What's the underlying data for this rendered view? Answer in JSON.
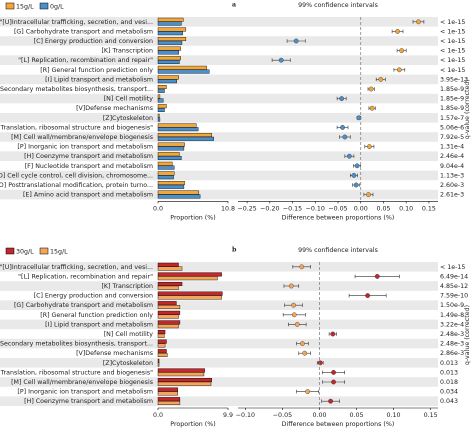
{
  "chart_data": [
    {
      "type": "errorbar",
      "label": "a",
      "ci_title": "99% confidence intervals",
      "categories": [
        "\"[U]Intracellular trafficking, secretion, and vesi...",
        "[G] Carbohydrate transport and metabolism",
        "[C] Energy production and conversion",
        "[K] Transcription",
        "\"[L] Replication, recombination and repair\"",
        "[R] General function prediction only",
        "[I] Lipid transport and metabolism",
        "\"[Q] Secondary metabolites biosynthesis, transport...",
        "[N] Cell motility",
        "[V]Defense mechanisms",
        "[Z]Cytoskeleton",
        "\"[J] Translation, ribosomal structure and biogenesis\"",
        "[M] Cell wall/membrane/envelope biogenesis",
        "[P] Inorganic ion transport and metabolism",
        "[H] Coenzyme transport and metabolism",
        "[F] Nucleotide transport and metabolism",
        "\"[D] Cell cycle control, cell division, chromosome...",
        "\"[O] Posttranslational modification, protein turno...",
        "[E] Amino acid transport and metabolism"
      ],
      "series": [
        {
          "name": "15g/L",
          "color": "#f3a73a",
          "values": [
            3.9,
            4.3,
            4.3,
            3.5,
            3.5,
            7.5,
            3.2,
            1.3,
            0.3,
            1.3,
            0.2,
            5.9,
            8.3,
            4.1,
            3.3,
            2.2,
            2.5,
            4.1,
            6.3
          ]
        },
        {
          "name": "0g/L",
          "color": "#4a8fcb",
          "values": [
            3.6,
            3.8,
            3.7,
            3.2,
            3.3,
            7.9,
            2.9,
            1.0,
            0.8,
            1.0,
            0.3,
            6.2,
            8.6,
            4.0,
            3.6,
            2.5,
            2.4,
            4.0,
            6.5
          ]
        }
      ],
      "xlabel": "Proportion (%)",
      "xlim": [
        0,
        10.8
      ],
      "xticks": [
        {
          "value": 0,
          "label": "0.0"
        },
        10.8
      ],
      "difference": {
        "values": [
          0.127,
          0.081,
          -0.142,
          0.09,
          -0.175,
          0.085,
          0.044,
          0.023,
          -0.042,
          0.025,
          -0.004,
          -0.04,
          -0.035,
          0.019,
          -0.025,
          -0.008,
          -0.015,
          -0.01,
          0.017
        ],
        "errors": [
          0.012,
          0.012,
          0.02,
          0.01,
          0.02,
          0.012,
          0.01,
          0.007,
          0.01,
          0.007,
          0.004,
          0.012,
          0.012,
          0.01,
          0.01,
          0.008,
          0.008,
          0.008,
          0.01
        ],
        "xlabel": "Difference between proportions (%)",
        "xlim": [
          -0.27,
          0.17
        ],
        "xticks": [
          {
            "value": -0.25,
            "label": "−0.25"
          },
          {
            "value": -0.2,
            "label": "−0.20"
          },
          {
            "value": -0.15,
            "label": "−0.15"
          },
          {
            "value": -0.1,
            "label": "−0.10"
          },
          {
            "value": -0.05,
            "label": "−0.05"
          },
          {
            "value": 0,
            "label": "0.00"
          },
          {
            "value": 0.05,
            "label": "0.05"
          },
          {
            "value": 0.1,
            "label": "0.10"
          },
          {
            "value": 0.15,
            "label": "0.15"
          }
        ]
      },
      "q_values": [
        "< 1e-15",
        "< 1e-15",
        "< 1e-15",
        "< 1e-15",
        "< 1e-15",
        "< 1e-15",
        "3.95e-13",
        "1.85e-9",
        "1.85e-9",
        "1.85e-9",
        "1.57e-7",
        "5.06e-6",
        "7.92e-5",
        "1.31e-4",
        "2.46e-4",
        "9.04e-4",
        "1.13e-3",
        "2.60e-3",
        "2.61e-3"
      ],
      "q_label": "q-value (corrected)"
    },
    {
      "type": "errorbar",
      "label": "b",
      "ci_title": "99% confidence intervals",
      "categories": [
        "\"[U]Intracellular trafficking, secretion, and vesi...",
        "\"[L] Replication, recombination and repair\"",
        "[K] Transcription",
        "[C] Energy production and conversion",
        "[G] Carbohydrate transport and metabolism",
        "[R] General function prediction only",
        "[I] Lipid transport and metabolism",
        "[N] Cell motility",
        "\"[Q] Secondary metabolites biosynthesis, transport...",
        "[V]Defense mechanisms",
        "[Z]Cytoskeleton",
        "\"[J] Translation, ribosomal structure and biogenesis\"",
        "[M] Cell wall/membrane/envelope biogenesis",
        "[P] Inorganic ion transport and metabolism",
        "[H] Coenzyme transport and metabolism"
      ],
      "series": [
        {
          "name": "30g/L",
          "color": "#c1272d",
          "values": [
            2.9,
            9.0,
            3.4,
            9.1,
            2.6,
            3.1,
            3.1,
            1.0,
            1.2,
            1.2,
            0.15,
            6.6,
            7.6,
            2.8,
            3.1
          ]
        },
        {
          "name": "15g/L",
          "color": "#f3a65a",
          "values": [
            3.4,
            8.4,
            2.9,
            9.0,
            3.1,
            2.9,
            2.9,
            0.9,
            1.0,
            1.3,
            0.15,
            6.5,
            7.5,
            2.8,
            3.1
          ]
        }
      ],
      "xlabel": "Proportion (%)",
      "xlim": [
        0,
        9.9
      ],
      "xticks": [
        {
          "value": 0,
          "label": "0.0"
        },
        9.9
      ],
      "difference": {
        "values": [
          -0.024,
          0.078,
          -0.038,
          0.065,
          -0.035,
          -0.034,
          -0.03,
          0.018,
          -0.023,
          -0.02,
          0.001,
          0.019,
          0.019,
          -0.016,
          0.015
        ],
        "errors": [
          0.012,
          0.03,
          0.01,
          0.025,
          0.012,
          0.015,
          0.012,
          0.005,
          0.008,
          0.008,
          0.004,
          0.015,
          0.015,
          0.015,
          0.012
        ],
        "xlabel": "Difference between proportions (%)",
        "xlim": [
          -0.11,
          0.16
        ],
        "xticks": [
          {
            "value": -0.1,
            "label": "−0.10"
          },
          {
            "value": -0.05,
            "label": "−0.05"
          },
          {
            "value": 0,
            "label": "0.00"
          },
          {
            "value": 0.05,
            "label": "0.05"
          },
          {
            "value": 0.1,
            "label": "0.10"
          },
          {
            "value": 0.15,
            "label": "0.15"
          }
        ]
      },
      "q_values": [
        "< 1e-15",
        "6.49e-14",
        "4.85e-12",
        "7.59e-10",
        "1.50e-9",
        "1.49e-8",
        "3.22e-4",
        "2.48e-3",
        "2.48e-3",
        "2.86e-3",
        "0.013",
        "0.013",
        "0.018",
        "0.034",
        "0.043"
      ],
      "q_label": "q-value (corrected)"
    }
  ]
}
